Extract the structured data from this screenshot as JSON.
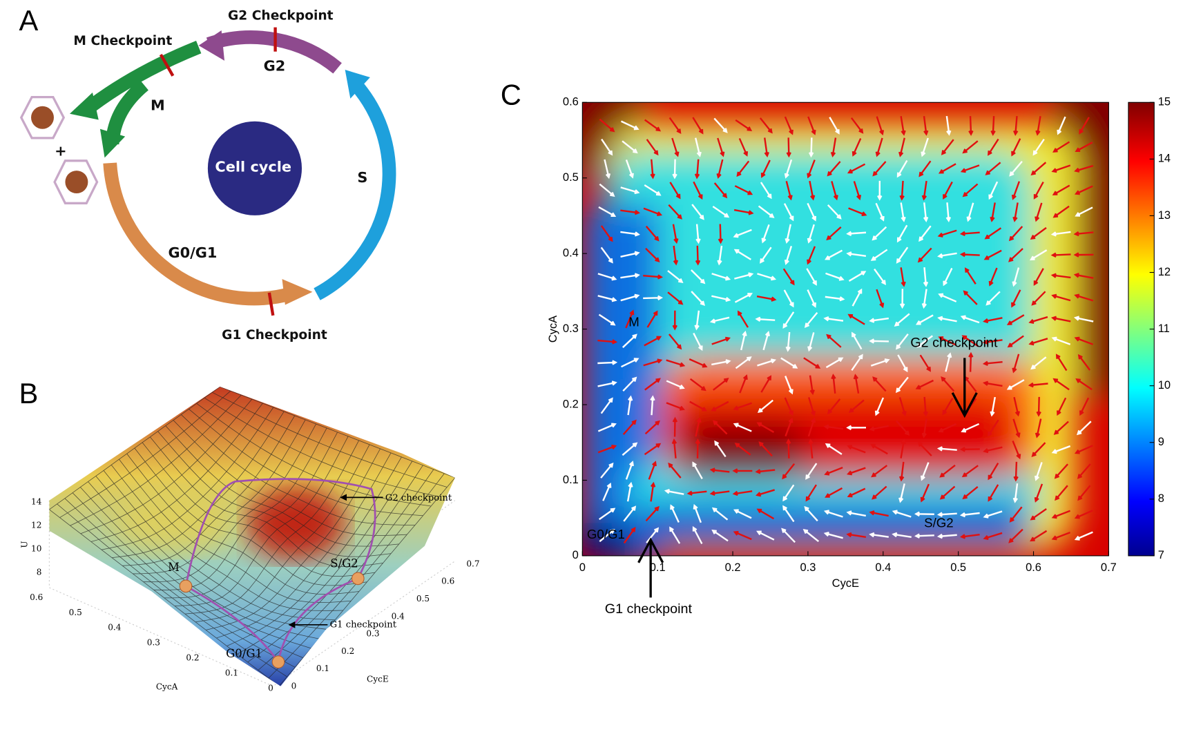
{
  "panel_a": {
    "label": "A",
    "center": "Cell cycle",
    "plus": "+",
    "phases": {
      "g2": "G2",
      "m": "M",
      "s": "S",
      "g0g1": "G0/G1"
    },
    "checkpoints": {
      "g2": "G2 Checkpoint",
      "m": "M Checkpoint",
      "g1": "G1 Checkpoint"
    }
  },
  "panel_b": {
    "label": "B",
    "z_label": "U",
    "x_label": "CycE",
    "y_label": "CycA",
    "z_ticks": [
      14,
      12,
      10,
      8
    ],
    "cyca_ticks": [
      0.6,
      0.5,
      0.4,
      0.3,
      0.2,
      0.1,
      0
    ],
    "cyce_ticks": [
      0,
      0.1,
      0.2,
      0.3,
      0.4,
      0.5,
      0.6,
      0.7
    ],
    "annotations": {
      "g2": "G2 checkpoint",
      "g1": "G1 checkpoint",
      "m": "M",
      "sg2": "S/G2",
      "g0g1": "G0/G1"
    }
  },
  "panel_c": {
    "label": "C",
    "x_label": "CycE",
    "y_label": "CycA",
    "xlim": [
      0,
      0.7
    ],
    "xticks": [
      0,
      0.1,
      0.2,
      0.3,
      0.4,
      0.5,
      0.6,
      0.7
    ],
    "ylim": [
      0,
      0.6
    ],
    "yticks": [
      0,
      0.1,
      0.2,
      0.3,
      0.4,
      0.5,
      0.6
    ],
    "colorbar_lim": [
      7,
      15
    ],
    "colorbar_ticks": [
      7,
      8,
      9,
      10,
      11,
      12,
      13,
      14,
      15
    ],
    "annotations": {
      "m": "M",
      "g2": "G2 checkpoint",
      "sg2": "S/G2",
      "g0g1": "G0/G1",
      "g1": "G1 checkpoint"
    }
  }
}
